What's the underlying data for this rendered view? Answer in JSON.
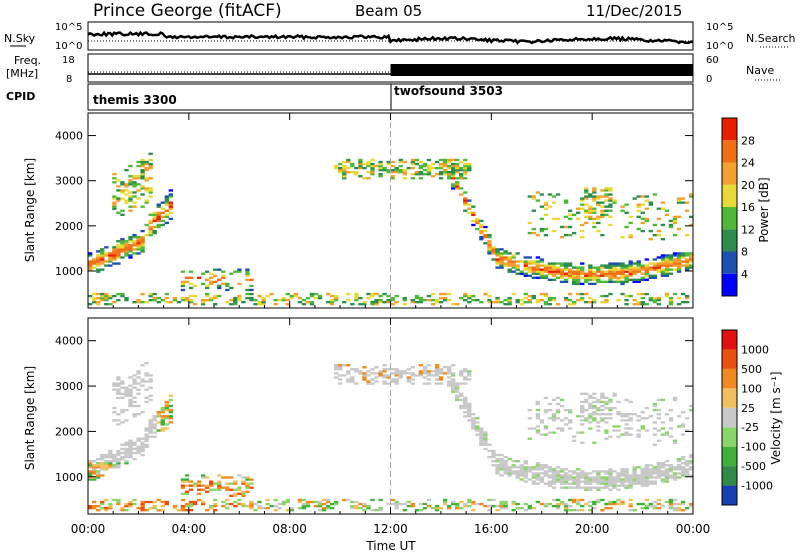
{
  "header": {
    "station": "Prince George (fitACF)",
    "beam": "Beam 05",
    "date": "11/Dec/2015"
  },
  "noise_panel": {
    "left_label": "N.Sky",
    "right_label": "N.Search",
    "left_ticks": [
      "10^5",
      "10^0"
    ],
    "right_ticks": [
      "10^5",
      "10^0"
    ]
  },
  "freq_panel": {
    "left_label_1": "Freq.",
    "left_label_2": "[MHz]",
    "right_label": "Nave",
    "left_ticks": [
      "18",
      "8"
    ],
    "right_ticks": [
      "60",
      "0"
    ]
  },
  "cpid": {
    "label": "CPID",
    "segments": [
      {
        "name": "themis 3300",
        "start_hour": 0,
        "end_hour": 12
      },
      {
        "name": "twofsound 3503",
        "start_hour": 12,
        "end_hour": 24
      }
    ]
  },
  "chart_data": [
    {
      "type": "heatmap",
      "name": "power",
      "ylabel": "Slant Range [km]",
      "yticks": [
        "1000",
        "2000",
        "3000",
        "4000"
      ],
      "ylim": [
        180,
        4500
      ],
      "xlim": [
        0,
        24
      ],
      "colorbar_label": "Power [dB]",
      "colorbar_ticks": [
        "4",
        "8",
        "12",
        "16",
        "20",
        "24",
        "28"
      ],
      "colorbar_colors": [
        "#0000ff",
        "#1f4fb0",
        "#2e8c4c",
        "#4fb83a",
        "#e8d93a",
        "#f2a030",
        "#f07018",
        "#e82000"
      ]
    },
    {
      "type": "heatmap",
      "name": "velocity",
      "ylabel": "Slant Range [km]",
      "yticks": [
        "1000",
        "2000",
        "3000",
        "4000"
      ],
      "ylim": [
        180,
        4500
      ],
      "xlim": [
        0,
        24
      ],
      "xticks": [
        "00:00",
        "04:00",
        "08:00",
        "12:00",
        "16:00",
        "20:00",
        "00:00"
      ],
      "xlabel": "Time UT",
      "colorbar_label": "Velocity [m s⁻¹]",
      "colorbar_ticks": [
        "1000",
        "500",
        "100",
        "25",
        "-25",
        "-100",
        "-500",
        "-1000"
      ],
      "colorbar_colors": [
        "#1a3fb0",
        "#2f8a4a",
        "#3fb03a",
        "#8bd46a",
        "#c8c8c8",
        "#f0c060",
        "#f08a20",
        "#e85010",
        "#e01010"
      ]
    }
  ]
}
